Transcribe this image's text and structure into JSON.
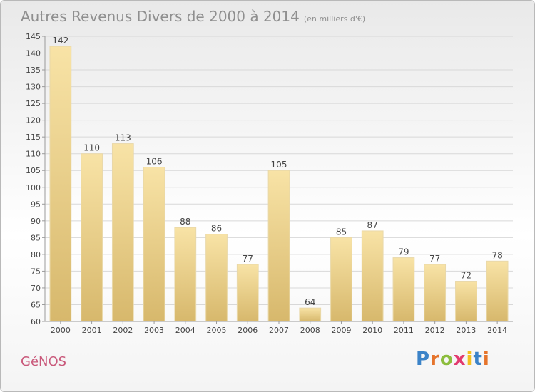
{
  "header": {
    "title": "Autres Revenus Divers de 2000 à 2014",
    "unit": "(en milliers d'€)"
  },
  "footer": {
    "place": "GéNOS",
    "brand": "Proxiti",
    "brand_colors": [
      "#3b83c8",
      "#e5742c",
      "#8cbd3d",
      "#e23a6f",
      "#f4c020",
      "#3b83c8",
      "#e5742c"
    ]
  },
  "colors": {
    "bar_light": "#f8e3a6",
    "bar_dark": "#d7b86c",
    "axis": "#9a9a9a",
    "grid": "#d8d8d8",
    "text": "#444444"
  },
  "chart_data": {
    "type": "bar",
    "categories": [
      "2000",
      "2001",
      "2002",
      "2003",
      "2004",
      "2005",
      "2006",
      "2007",
      "2008",
      "2009",
      "2010",
      "2011",
      "2012",
      "2013",
      "2014"
    ],
    "values": [
      142,
      110,
      113,
      106,
      88,
      86,
      77,
      105,
      64,
      85,
      87,
      79,
      77,
      72,
      78
    ],
    "ylim": [
      60,
      145
    ],
    "yticks": [
      60,
      65,
      70,
      75,
      80,
      85,
      90,
      95,
      100,
      105,
      110,
      115,
      120,
      125,
      130,
      135,
      140,
      145
    ],
    "grid": true,
    "legend": "none"
  }
}
